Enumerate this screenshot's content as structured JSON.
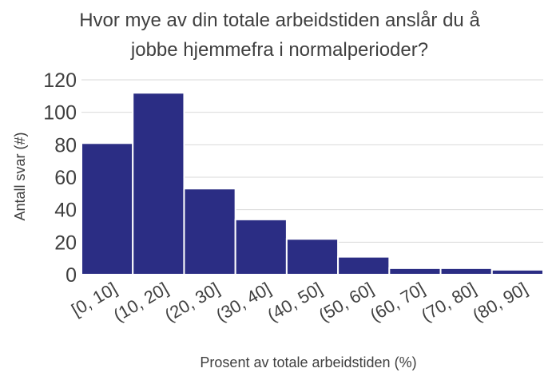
{
  "chart_data": {
    "type": "bar",
    "title_line1": "Hvor mye av din totale arbeidstiden anslår du å",
    "title_line2": "jobbe hjemmefra i normalperioder?",
    "xlabel": "Prosent av totale arbeidstiden (%)",
    "ylabel": "Antall svar (#)",
    "categories": [
      "[0, 10]",
      "(10, 20]",
      "(20, 30]",
      "(30, 40]",
      "(40, 50]",
      "(50, 60]",
      "(60, 70]",
      "(70, 80]",
      "(80, 90]"
    ],
    "series": [
      {
        "values": [
          81,
          112,
          53,
          34,
          22,
          11,
          4,
          4,
          3
        ]
      }
    ],
    "ylim": [
      0,
      120
    ],
    "yticks": [
      0,
      20,
      40,
      60,
      80,
      100,
      120
    ],
    "bar_color": "#2b2d84",
    "grid": true
  }
}
